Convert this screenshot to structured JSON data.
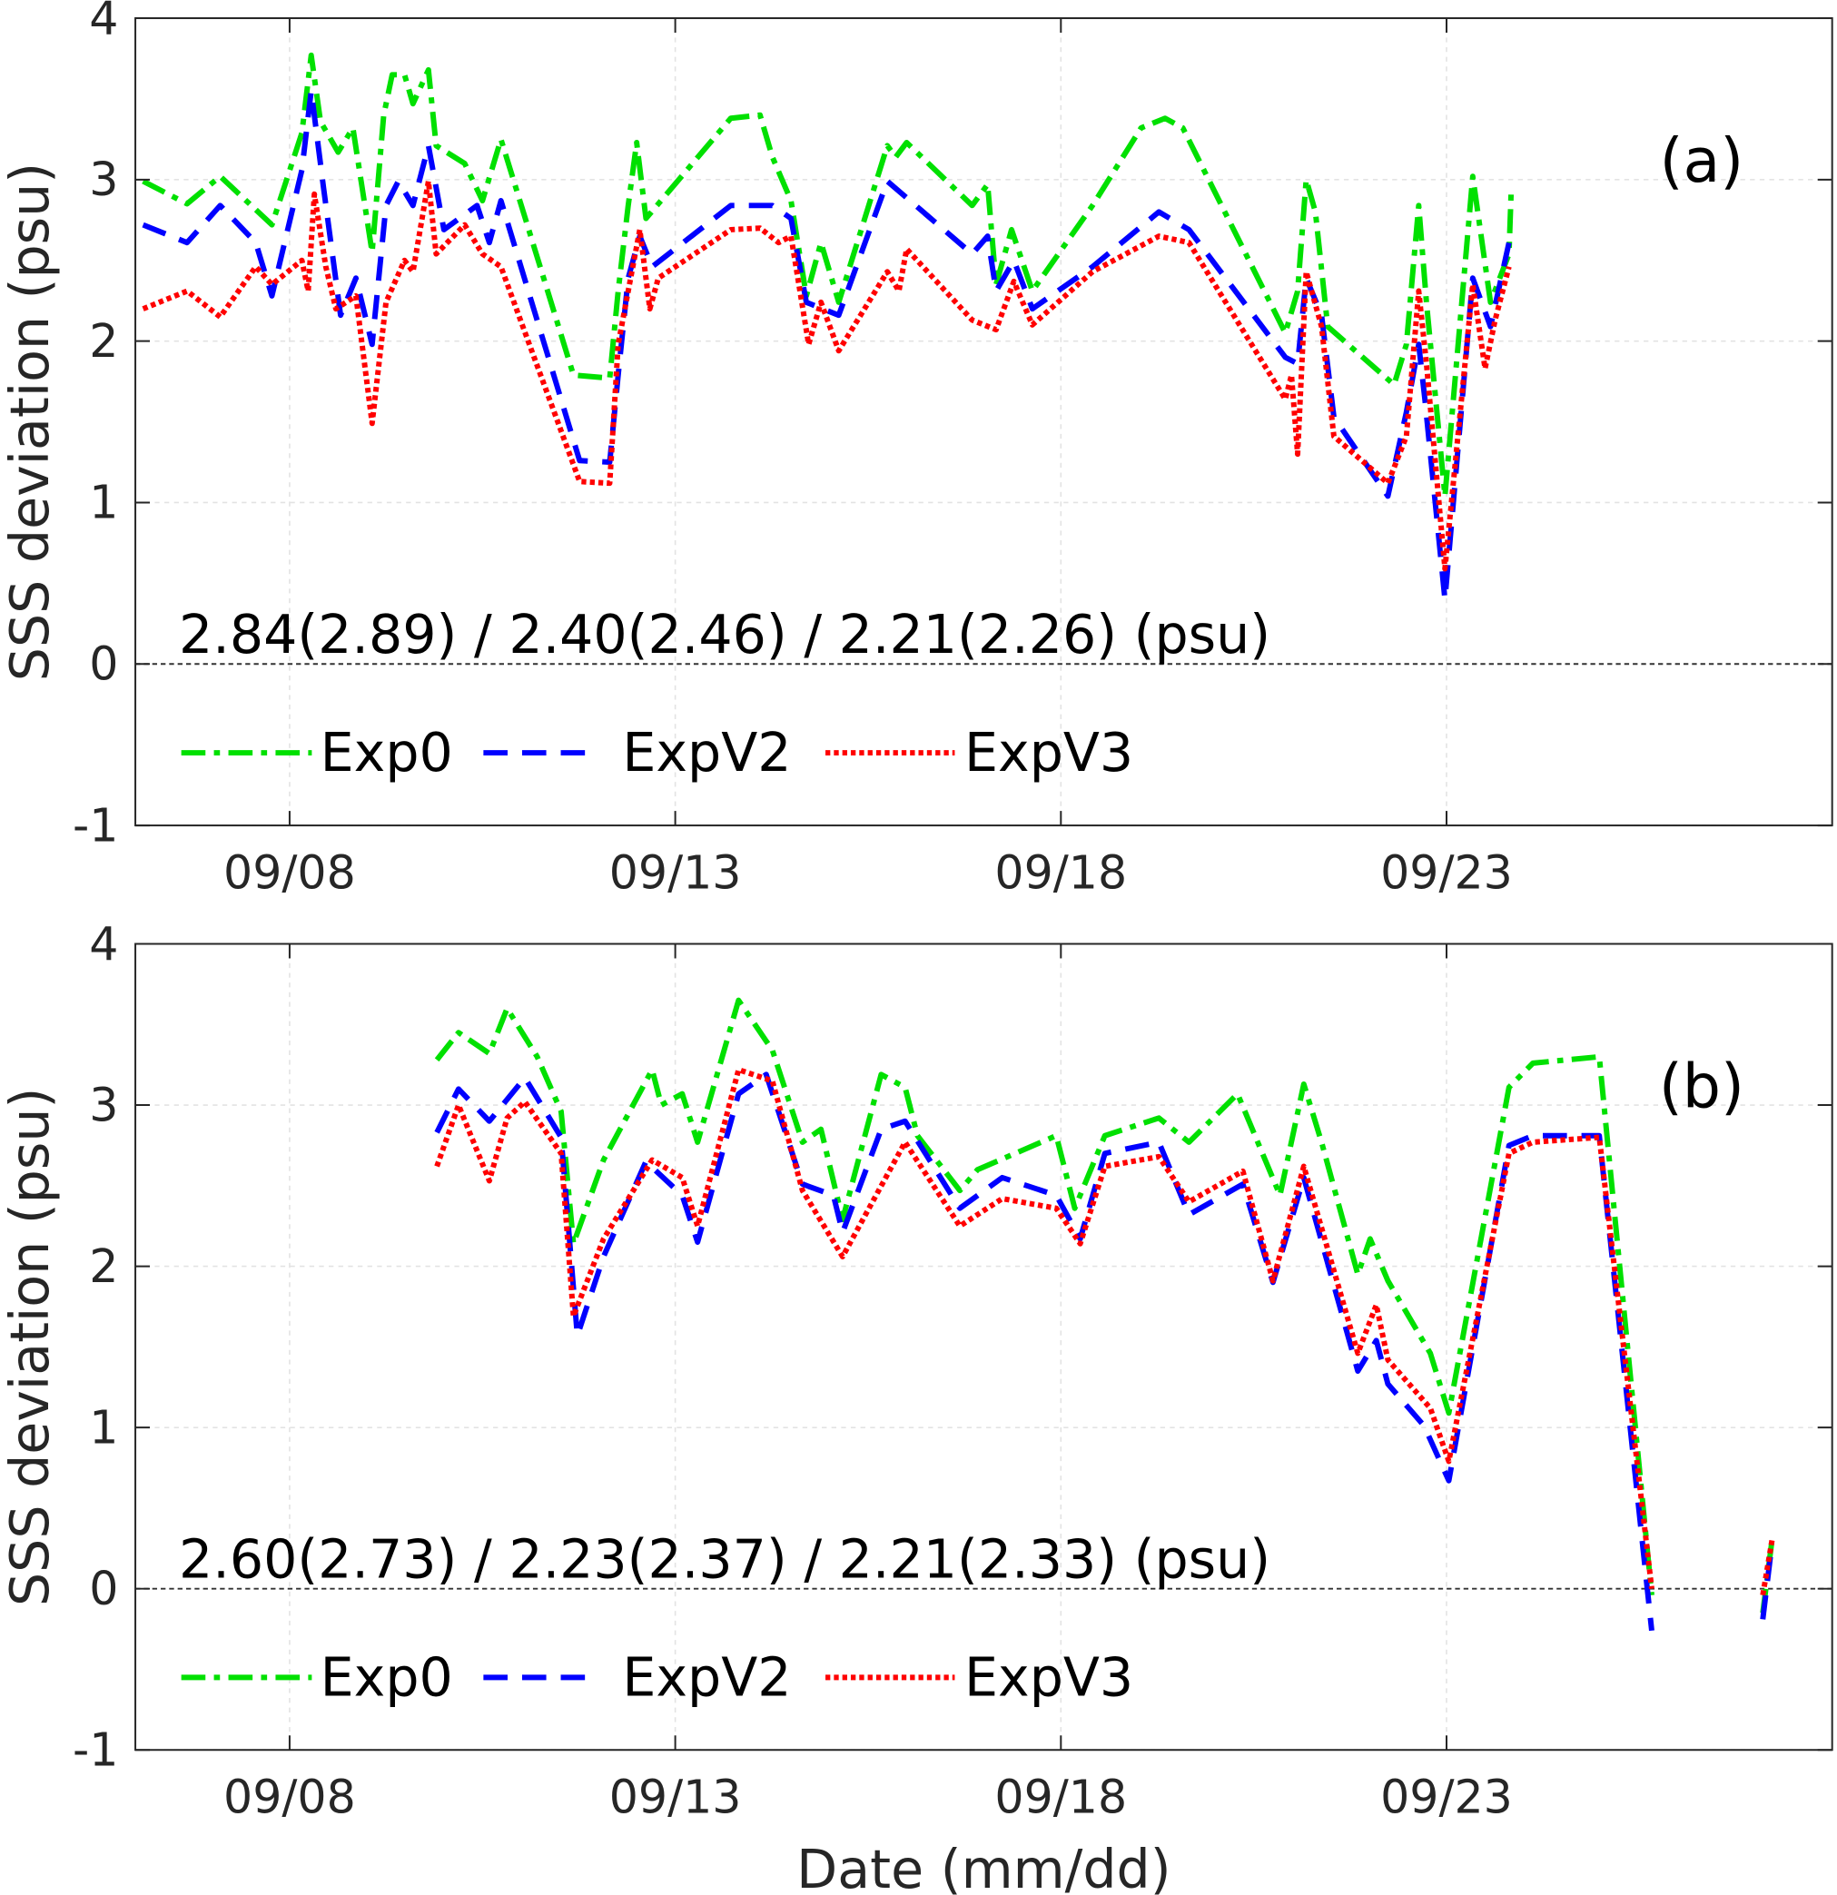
{
  "chart_data": [
    {
      "type": "line",
      "panel_label": "(a)",
      "ylabel": "SSS deviation (psu)",
      "xlabel": "",
      "x_unit": "day of September",
      "xlim": [
        6,
        28
      ],
      "ylim": [
        -1,
        4
      ],
      "yticks": [
        -1,
        0,
        1,
        2,
        3,
        4
      ],
      "ytick_labels": [
        "-1",
        "0",
        "1",
        "2",
        "3",
        "4"
      ],
      "xticks": [
        8,
        13,
        18,
        23
      ],
      "xtick_labels": [
        "09/08",
        "09/13",
        "09/18",
        "09/23"
      ],
      "grid": true,
      "annotation": "2.84(2.89) / 2.40(2.46) / 2.21(2.26) (psu)",
      "legend_placement": "bottom-left",
      "series": [
        {
          "name": "Exp0",
          "color": "#00e000",
          "style": "dash-dot",
          "x": [
            6.1,
            6.67,
            7.1,
            7.77,
            8.16,
            8.28,
            8.4,
            8.63,
            8.82,
            9.07,
            9.22,
            9.33,
            9.49,
            9.6,
            9.8,
            9.9,
            10.27,
            10.5,
            10.74,
            11.68,
            12.15,
            12.26,
            12.39,
            12.5,
            12.62,
            13.72,
            14.1,
            14.26,
            14.5,
            14.7,
            14.89,
            15.12,
            15.75,
            15.86,
            16.0,
            16.85,
            17.05,
            17.16,
            17.36,
            17.63,
            18.41,
            19.04,
            19.35,
            19.58,
            20.91,
            21.07,
            21.18,
            21.3,
            21.46,
            22.32,
            22.48,
            22.64,
            22.74,
            22.98,
            23.34,
            23.57,
            23.81,
            23.84
          ],
          "y": [
            2.99,
            2.85,
            3.02,
            2.72,
            3.29,
            3.77,
            3.36,
            3.17,
            3.32,
            2.55,
            3.4,
            3.65,
            3.65,
            3.47,
            3.68,
            3.21,
            3.1,
            2.87,
            3.25,
            1.79,
            1.77,
            2.31,
            2.84,
            3.23,
            2.76,
            3.38,
            3.4,
            3.14,
            2.87,
            2.28,
            2.61,
            2.24,
            3.21,
            3.14,
            3.23,
            2.84,
            2.97,
            2.35,
            2.69,
            2.31,
            2.84,
            3.32,
            3.38,
            3.32,
            2.05,
            2.31,
            3.0,
            2.8,
            2.09,
            1.73,
            1.98,
            2.84,
            2.24,
            1.04,
            3.02,
            2.24,
            2.54,
            2.95
          ]
        },
        {
          "name": "ExpV2",
          "color": "#0000ff",
          "style": "dashed",
          "x": [
            6.1,
            6.67,
            7.1,
            7.56,
            7.77,
            8.16,
            8.28,
            8.44,
            8.66,
            8.86,
            9.07,
            9.25,
            9.41,
            9.6,
            9.8,
            10.0,
            10.43,
            10.59,
            10.74,
            11.76,
            12.15,
            12.26,
            12.39,
            12.54,
            12.7,
            13.72,
            14.26,
            14.5,
            14.7,
            15.12,
            15.75,
            16.85,
            17.05,
            17.16,
            17.39,
            17.63,
            18.41,
            19.27,
            19.66,
            20.91,
            21.07,
            21.18,
            21.38,
            21.54,
            22.24,
            22.48,
            22.64,
            22.72,
            22.98,
            23.34,
            23.57,
            23.81
          ],
          "y": [
            2.72,
            2.61,
            2.84,
            2.61,
            2.28,
            3.06,
            3.55,
            2.95,
            2.16,
            2.39,
            1.98,
            2.84,
            2.99,
            2.84,
            3.21,
            2.69,
            2.84,
            2.61,
            2.87,
            1.26,
            1.25,
            1.79,
            2.39,
            2.65,
            2.46,
            2.84,
            2.84,
            2.76,
            2.24,
            2.16,
            2.99,
            2.54,
            2.65,
            2.31,
            2.5,
            2.2,
            2.46,
            2.8,
            2.69,
            1.9,
            1.86,
            2.39,
            2.16,
            1.53,
            1.04,
            1.56,
            1.98,
            1.64,
            0.4,
            2.39,
            2.09,
            2.61
          ]
        },
        {
          "name": "ExpV3",
          "color": "#ff0000",
          "style": "dotted",
          "x": [
            6.1,
            6.67,
            7.1,
            7.56,
            7.77,
            8.16,
            8.24,
            8.32,
            8.47,
            8.6,
            8.86,
            9.07,
            9.25,
            9.49,
            9.6,
            9.8,
            9.9,
            10.27,
            10.5,
            10.74,
            11.76,
            12.15,
            12.26,
            12.39,
            12.54,
            12.67,
            12.78,
            13.72,
            14.1,
            14.34,
            14.5,
            14.73,
            14.89,
            15.12,
            15.75,
            15.9,
            16.0,
            16.85,
            17.16,
            17.39,
            17.63,
            18.41,
            19.27,
            19.66,
            20.91,
            20.99,
            21.07,
            21.18,
            21.38,
            21.54,
            22.24,
            22.48,
            22.64,
            22.74,
            22.98,
            23.34,
            23.5,
            23.63,
            23.81
          ],
          "y": [
            2.2,
            2.31,
            2.15,
            2.46,
            2.35,
            2.5,
            2.31,
            2.91,
            2.46,
            2.2,
            2.28,
            1.49,
            2.24,
            2.5,
            2.43,
            2.99,
            2.54,
            2.72,
            2.54,
            2.46,
            1.13,
            1.12,
            1.98,
            2.31,
            2.69,
            2.2,
            2.39,
            2.69,
            2.7,
            2.61,
            2.65,
            1.98,
            2.24,
            1.94,
            2.43,
            2.31,
            2.57,
            2.13,
            2.07,
            2.37,
            2.1,
            2.43,
            2.65,
            2.61,
            1.64,
            1.79,
            1.3,
            2.43,
            2.09,
            1.41,
            1.12,
            1.41,
            2.31,
            1.86,
            0.59,
            2.35,
            1.83,
            2.13,
            2.46
          ]
        }
      ]
    },
    {
      "type": "line",
      "panel_label": "(b)",
      "ylabel": "SSS deviation (psu)",
      "xlabel": "Date (mm/dd)",
      "x_unit": "day of September",
      "xlim": [
        6,
        28
      ],
      "ylim": [
        -1,
        4
      ],
      "yticks": [
        -1,
        0,
        1,
        2,
        3,
        4
      ],
      "ytick_labels": [
        "-1",
        "0",
        "1",
        "2",
        "3",
        "4"
      ],
      "xticks": [
        8,
        13,
        18,
        23
      ],
      "xtick_labels": [
        "09/08",
        "09/13",
        "09/18",
        "09/23"
      ],
      "grid": true,
      "annotation": "2.60(2.73) / 2.23(2.37) / 2.21(2.33) (psu)",
      "legend_placement": "bottom-left",
      "series": [
        {
          "name": "Exp0",
          "color": "#00e000",
          "style": "dash-dot",
          "x": [
            9.91,
            10.19,
            10.59,
            10.82,
            11.21,
            11.52,
            11.68,
            12.07,
            12.7,
            12.82,
            13.09,
            13.29,
            13.82,
            14.26,
            14.65,
            14.89,
            15.17,
            15.67,
            15.98,
            16.14,
            16.69,
            16.92,
            17.94,
            18.18,
            18.57,
            19.27,
            19.66,
            20.29,
            20.84,
            21.15,
            21.38,
            21.85,
            22.01,
            22.24,
            22.79,
            23.03,
            23.81,
            24.12,
            24.98,
            25.66,
            null,
            27.1,
            27.22
          ],
          "y": [
            3.28,
            3.45,
            3.32,
            3.6,
            3.3,
            2.96,
            2.14,
            2.66,
            3.22,
            3.0,
            3.07,
            2.77,
            3.65,
            3.34,
            2.77,
            2.85,
            2.29,
            3.19,
            3.11,
            2.81,
            2.47,
            2.6,
            2.81,
            2.36,
            2.81,
            2.92,
            2.77,
            3.07,
            2.44,
            3.13,
            2.77,
            1.95,
            2.17,
            1.91,
            1.46,
            1.09,
            3.11,
            3.26,
            3.3,
            -0.04,
            null,
            -0.15,
            0.3
          ]
        },
        {
          "name": "ExpV2",
          "color": "#0000ff",
          "style": "dashed",
          "x": [
            9.91,
            10.19,
            10.59,
            11.05,
            11.52,
            11.73,
            12.07,
            12.62,
            13.09,
            13.29,
            13.82,
            14.18,
            14.65,
            15.05,
            15.17,
            15.67,
            15.98,
            16.69,
            17.24,
            17.94,
            18.25,
            18.57,
            19.27,
            19.66,
            20.36,
            20.75,
            21.15,
            21.85,
            22.09,
            22.24,
            22.71,
            23.03,
            23.81,
            24.12,
            24.98,
            25.66,
            null,
            27.1,
            27.22
          ],
          "y": [
            2.83,
            3.1,
            2.9,
            3.17,
            2.8,
            1.57,
            2.06,
            2.65,
            2.44,
            2.15,
            3.07,
            3.19,
            2.51,
            2.44,
            2.21,
            2.85,
            2.9,
            2.36,
            2.55,
            2.44,
            2.17,
            2.7,
            2.77,
            2.32,
            2.51,
            1.9,
            2.55,
            1.35,
            1.54,
            1.27,
            1.01,
            0.67,
            2.75,
            2.81,
            2.81,
            -0.26,
            null,
            -0.19,
            0.28
          ]
        },
        {
          "name": "ExpV3",
          "color": "#ff0000",
          "style": "dotted",
          "x": [
            9.91,
            10.19,
            10.59,
            10.82,
            11.05,
            11.52,
            11.68,
            12.07,
            12.7,
            13.09,
            13.29,
            13.82,
            14.26,
            14.65,
            15.17,
            15.98,
            16.69,
            17.24,
            17.94,
            18.25,
            18.57,
            19.27,
            19.66,
            20.36,
            20.75,
            21.15,
            21.85,
            22.09,
            22.24,
            22.79,
            23.03,
            23.81,
            24.12,
            24.98,
            25.66,
            null,
            27.1,
            27.22
          ],
          "y": [
            2.62,
            3.0,
            2.53,
            2.92,
            3.02,
            2.7,
            1.69,
            2.17,
            2.66,
            2.55,
            2.25,
            3.22,
            3.15,
            2.47,
            2.06,
            2.77,
            2.25,
            2.42,
            2.36,
            2.14,
            2.62,
            2.68,
            2.4,
            2.59,
            1.91,
            2.62,
            1.46,
            1.76,
            1.42,
            1.12,
            0.79,
            2.7,
            2.77,
            2.8,
            0.0,
            null,
            -0.04,
            0.3
          ]
        }
      ]
    }
  ]
}
